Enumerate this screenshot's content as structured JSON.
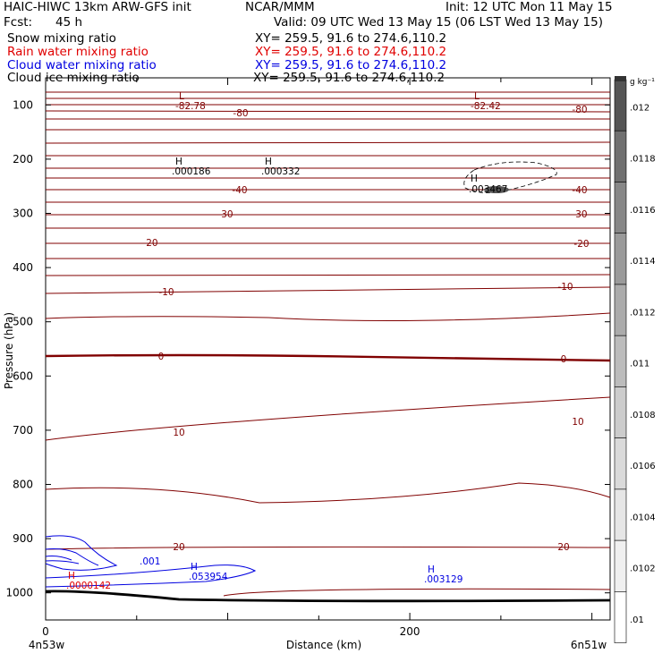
{
  "header": {
    "line1_left": "HAIC-HIWC 13km ARW-GFS init",
    "line1_mid": "NCAR/MMM",
    "line1_right": "Init: 12 UTC Mon 11 May 15",
    "fcst_label": "Fcst:",
    "fcst_value": "45 h",
    "valid": "Valid: 09 UTC Wed 13 May 15 (06 LST Wed 13 May 15)",
    "fields": [
      {
        "name": "Snow mixing ratio",
        "xy": "XY= 259.5, 91.6 to 274.6,110.2",
        "color": "#000000"
      },
      {
        "name": "Rain water mixing ratio",
        "xy": "XY= 259.5, 91.6 to 274.6,110.2",
        "color": "#e00000"
      },
      {
        "name": "Cloud water mixing ratio",
        "xy": "XY= 259.5, 91.6 to 274.6,110.2",
        "color": "#0000e0"
      },
      {
        "name": "Cloud ice mixing ratio",
        "xy": "XY= 259.5, 91.6 to 274.6,110.2",
        "color": "#000000"
      }
    ]
  },
  "chart_data": {
    "type": "contour",
    "ylabel": "Pressure (hPa)",
    "xlabel": "Distance (km)",
    "x_range": [
      0,
      310
    ],
    "y_range": [
      1050,
      50
    ],
    "x_ticks": [
      "0",
      "200"
    ],
    "x_tick_values": [
      0,
      200
    ],
    "y_ticks": [
      "100",
      "200",
      "300",
      "400",
      "500",
      "600",
      "700",
      "800",
      "900",
      "1000"
    ],
    "y_tick_values": [
      100,
      200,
      300,
      400,
      500,
      600,
      700,
      800,
      900,
      1000
    ],
    "left_endpoint": "4n53w",
    "right_endpoint": "6n51w",
    "temperature_labels": [
      "-80",
      "-80",
      "-40",
      "-40",
      "-30",
      "-30",
      "-20",
      "-20",
      "-10",
      "-10",
      "0",
      "0",
      "10",
      "10",
      "20",
      "20"
    ],
    "extrema": [
      {
        "kind": "L",
        "value": "-82.78",
        "color": "#800000"
      },
      {
        "kind": "L",
        "value": "-82.42",
        "color": "#800000"
      },
      {
        "kind": "H",
        "value": ".000186",
        "color": "#000000"
      },
      {
        "kind": "H",
        "value": ".000332",
        "color": "#000000"
      },
      {
        "kind": "H",
        "value": ".003467",
        "color": "#000000"
      },
      {
        "kind": "H",
        "value": ".0000142",
        "color": "#e00000"
      },
      {
        "kind": "H",
        "value": ".053954",
        "color": "#0000e0"
      },
      {
        "kind": "H",
        "value": ".003129",
        "color": "#0000e0"
      }
    ],
    "cloud_water_contour_label": ".001",
    "colorbar": {
      "unit": "g kg⁻¹",
      "labels": [
        ".012",
        ".0118",
        ".0116",
        ".0114",
        ".0112",
        ".011",
        ".0108",
        ".0106",
        ".0104",
        ".0102",
        ".01"
      ]
    }
  }
}
